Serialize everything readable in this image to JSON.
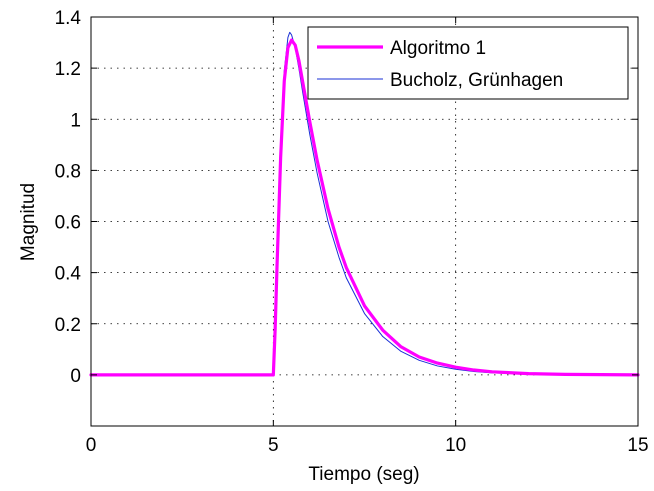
{
  "chart_data": {
    "type": "line",
    "title": "",
    "xlabel": "Tiempo (seg)",
    "ylabel": "Magnitud",
    "xlim": [
      0,
      15
    ],
    "ylim": [
      -0.2,
      1.4
    ],
    "xticks": [
      0,
      5,
      10,
      15
    ],
    "xtick_labels": [
      "0",
      "5",
      "10",
      "15"
    ],
    "yticks": [
      0,
      0.2,
      0.4,
      0.6,
      0.8,
      1,
      1.2,
      1.4
    ],
    "ytick_labels": [
      "0",
      "0.2",
      "0.4",
      "0.6",
      "0.8",
      "1",
      "1.2",
      "1.4"
    ],
    "grid": true,
    "grid_style": "dotted",
    "legend_position": "top-right",
    "series": [
      {
        "name": "Algoritmo 1",
        "color": "#ff00ff",
        "line_width": "thick",
        "x": [
          0,
          5,
          5.05,
          5.1,
          5.2,
          5.3,
          5.4,
          5.5,
          5.6,
          5.7,
          5.8,
          6.0,
          6.2,
          6.5,
          6.8,
          7.0,
          7.5,
          8.0,
          8.5,
          9.0,
          9.5,
          10.0,
          10.5,
          11.0,
          12.0,
          13.0,
          14.0,
          15.0
        ],
        "values": [
          0,
          0,
          0.18,
          0.42,
          0.85,
          1.15,
          1.28,
          1.31,
          1.29,
          1.23,
          1.15,
          0.99,
          0.84,
          0.65,
          0.5,
          0.42,
          0.27,
          0.175,
          0.11,
          0.07,
          0.046,
          0.03,
          0.019,
          0.012,
          0.005,
          0.002,
          0.001,
          0.0
        ]
      },
      {
        "name": "Bucholz, Grünhagen",
        "color": "#1a2fd6",
        "line_width": "thin",
        "x": [
          0,
          5,
          5.05,
          5.1,
          5.2,
          5.3,
          5.4,
          5.45,
          5.5,
          5.6,
          5.7,
          5.8,
          6.0,
          6.2,
          6.5,
          6.8,
          7.0,
          7.5,
          8.0,
          8.5,
          9.0,
          9.5,
          10.0,
          10.5,
          11.0,
          12.0,
          13.0,
          14.0,
          15.0
        ],
        "values": [
          0,
          0,
          0.2,
          0.46,
          0.9,
          1.19,
          1.32,
          1.34,
          1.33,
          1.28,
          1.2,
          1.11,
          0.94,
          0.79,
          0.6,
          0.46,
          0.38,
          0.24,
          0.15,
          0.092,
          0.057,
          0.035,
          0.022,
          0.013,
          0.008,
          0.003,
          0.001,
          0.0,
          0.0
        ]
      }
    ]
  }
}
